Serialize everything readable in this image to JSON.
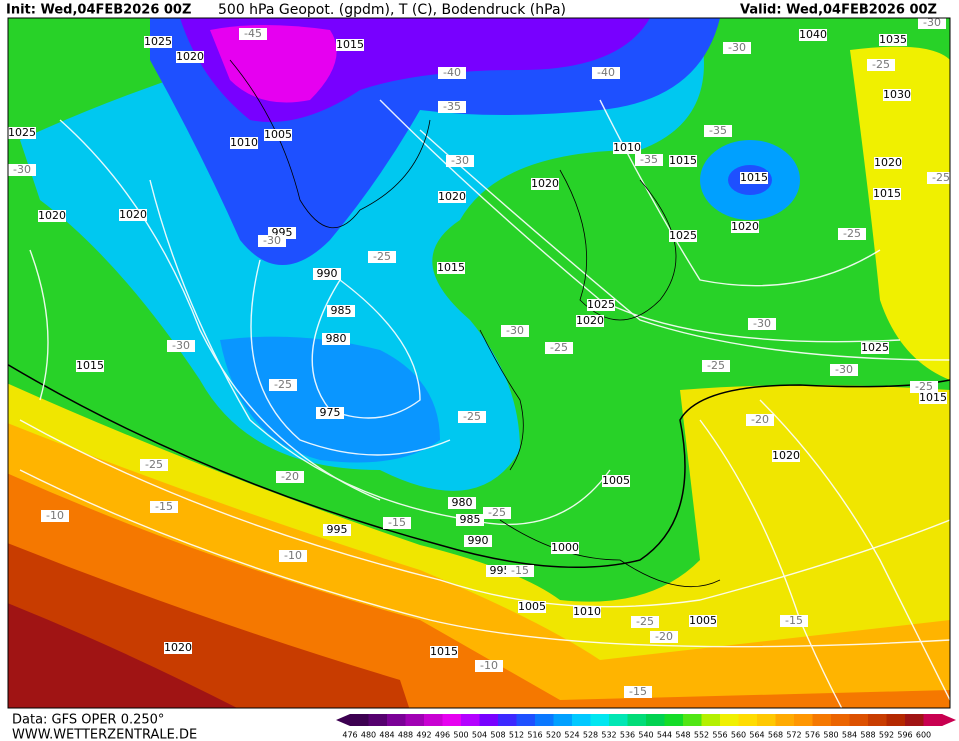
{
  "header": {
    "init": "Init: Wed,04FEB2026 00Z",
    "title": "500 hPa Geopot. (gpdm), T (C), Bodendruck (hPa)",
    "valid": "Valid: Wed,04FEB2026 00Z"
  },
  "footer": {
    "source": "Data: GFS OPER 0.250°",
    "site": "WWW.WETTERZENTRALE.DE"
  },
  "colorbar": {
    "labels": [
      476,
      480,
      484,
      488,
      492,
      496,
      500,
      504,
      508,
      512,
      516,
      520,
      524,
      528,
      532,
      536,
      540,
      544,
      548,
      552,
      556,
      560,
      564,
      568,
      572,
      576,
      580,
      584,
      588,
      592,
      596,
      600
    ],
    "colors": [
      "#3c0050",
      "#55006e",
      "#7a0096",
      "#a000b4",
      "#c800d2",
      "#e600f0",
      "#b400ff",
      "#7800ff",
      "#3c28ff",
      "#1e50ff",
      "#0a78ff",
      "#00a0ff",
      "#00c8ff",
      "#00e6f0",
      "#00e6b4",
      "#00dc78",
      "#00d250",
      "#14dc28",
      "#50e614",
      "#b4f000",
      "#f0f000",
      "#ffdc00",
      "#ffc800",
      "#ffaa00",
      "#ff9600",
      "#f57800",
      "#eb6400",
      "#dc5000",
      "#c83c00",
      "#b42800",
      "#a01414",
      "#c80050"
    ]
  },
  "map": {
    "pressure_labels": [
      1025,
      1020,
      1015,
      1025,
      1010,
      1005,
      995,
      990,
      985,
      980,
      975,
      1020,
      1020,
      1015,
      1020,
      1015,
      1020,
      1010,
      1015,
      1015,
      1020,
      1025,
      1025,
      1020,
      1040,
      1035,
      1030,
      1020,
      1015,
      1025,
      1015,
      1020,
      1005,
      1000,
      995,
      980,
      985,
      990,
      995,
      1005,
      1010,
      1005,
      1020,
      1015
    ],
    "temperature_labels": [
      -45,
      -40,
      -40,
      -35,
      -35,
      -35,
      -30,
      -30,
      -30,
      -30,
      -25,
      -30,
      -25,
      -30,
      -30,
      -25,
      -30,
      -30,
      -25,
      -25,
      -25,
      -25,
      -25,
      -25,
      -20,
      -20,
      -25,
      -15,
      -15,
      -25,
      -15,
      -10,
      -10,
      -15,
      -25,
      -20,
      -10,
      -15
    ]
  }
}
